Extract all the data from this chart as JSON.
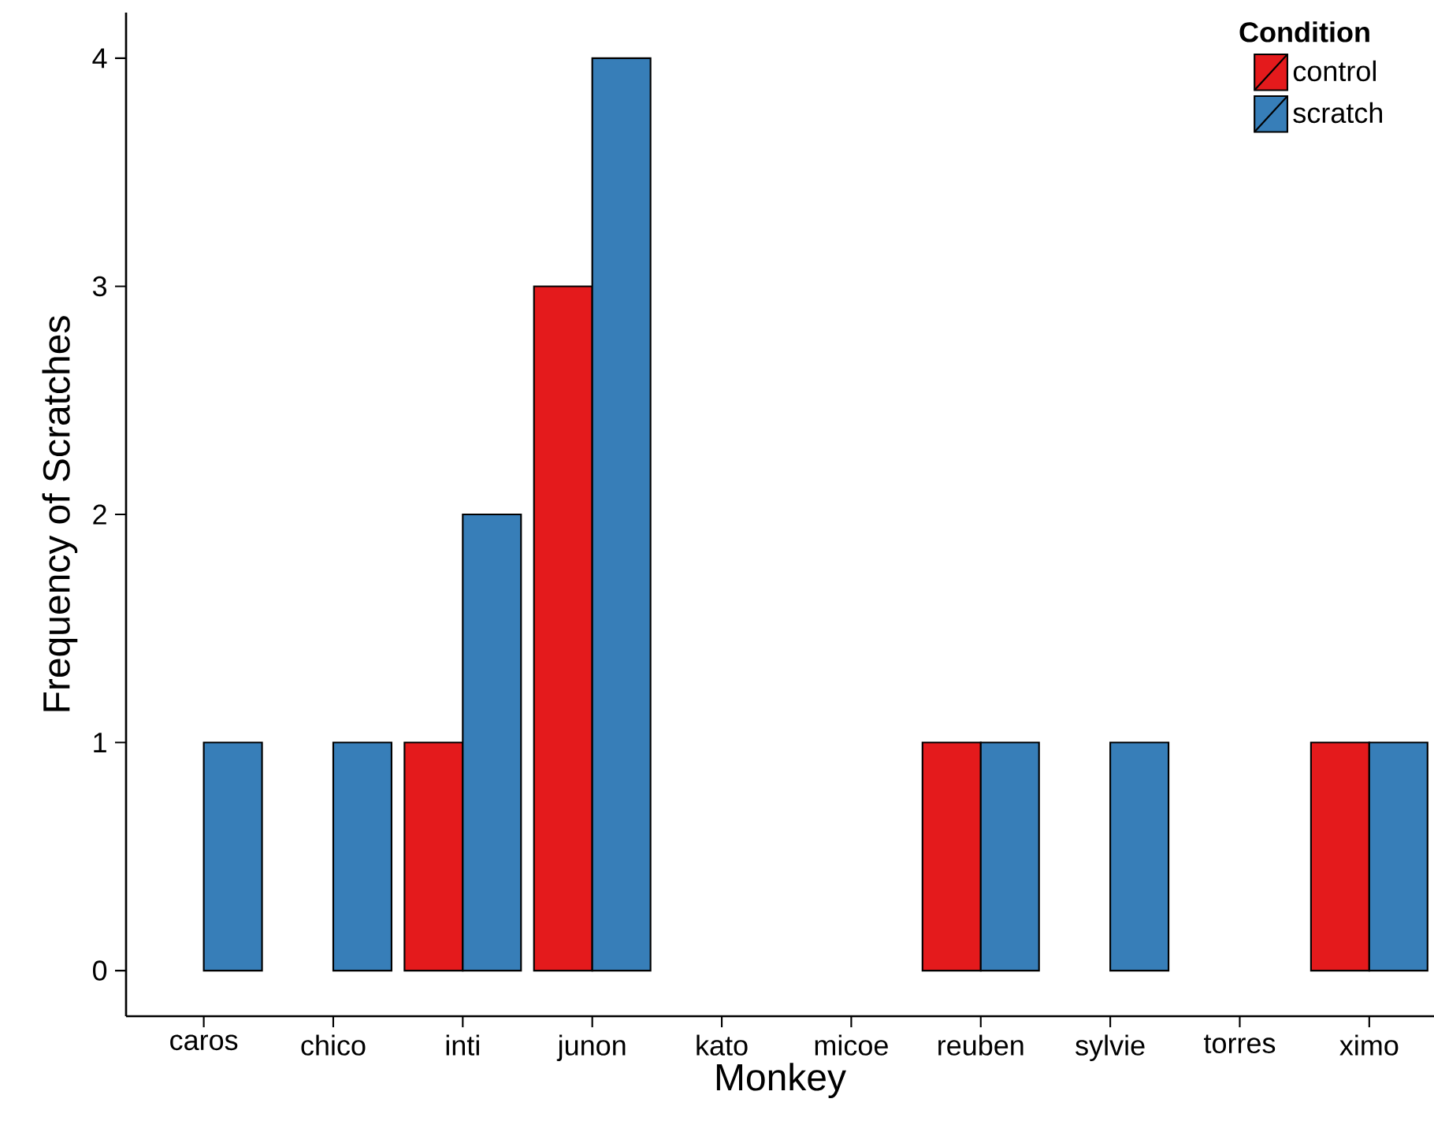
{
  "chart_data": {
    "type": "bar",
    "xlabel": "Monkey",
    "ylabel": "Frequency of Scratches",
    "legend_title": "Condition",
    "categories": [
      "caros",
      "chico",
      "inti",
      "junon",
      "kato",
      "micoe",
      "reuben",
      "sylvie",
      "torres",
      "ximo"
    ],
    "series": [
      {
        "name": "control",
        "color": "#e41a1c",
        "values": [
          null,
          null,
          1,
          3,
          null,
          null,
          1,
          null,
          null,
          1
        ]
      },
      {
        "name": "scratch",
        "color": "#377eb8",
        "values": [
          1,
          1,
          2,
          4,
          null,
          null,
          1,
          1,
          null,
          1
        ]
      }
    ],
    "ylim": [
      -0.2,
      4.2
    ],
    "yticks": [
      0,
      1,
      2,
      3,
      4
    ],
    "grid": false,
    "legend": "top right"
  }
}
